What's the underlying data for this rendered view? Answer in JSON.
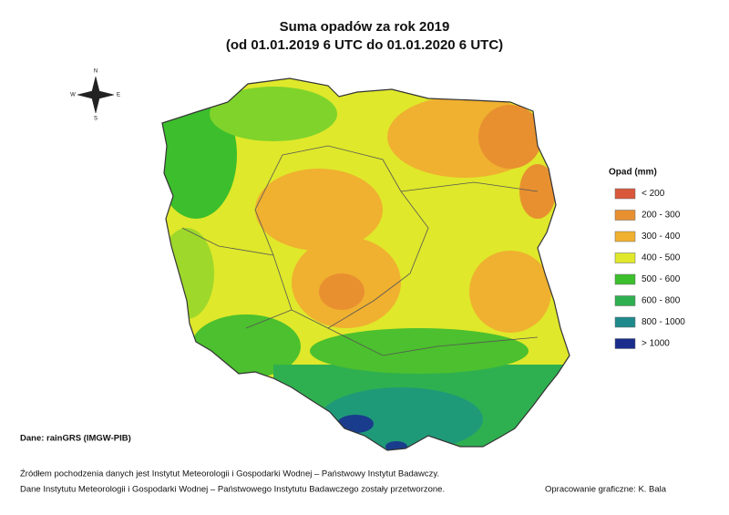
{
  "title": {
    "line1": "Suma opadów za rok 2019",
    "line2": "(od 01.01.2019 6 UTC do 01.01.2020 6 UTC)"
  },
  "compass": {
    "n": "N",
    "e": "E",
    "s": "S",
    "w": "W"
  },
  "legend": {
    "title": "Opad (mm)",
    "items": [
      {
        "label": "< 200",
        "color": "#d9573a"
      },
      {
        "label": "200 - 300",
        "color": "#e89030"
      },
      {
        "label": "300 - 400",
        "color": "#f0b030"
      },
      {
        "label": "400 - 500",
        "color": "#dfe82a"
      },
      {
        "label": "500 - 600",
        "color": "#3cbe2d"
      },
      {
        "label": "600 - 800",
        "color": "#2fb050"
      },
      {
        "label": "800 - 1000",
        "color": "#1f8a8c"
      },
      {
        "label": "> 1000",
        "color": "#1a2c8c"
      }
    ]
  },
  "source": "Dane: rainGRS (IMGW-PIB)",
  "footer": {
    "line1": "Źródłem pochodzenia danych jest Instytut Meteorologii i Gospodarki Wodnej – Państwowy Instytut Badawczy.",
    "line2": "Dane Instytutu Meteorologii i Gospodarki Wodnej – Państwowego Instytutu Badawczego zostały przetworzone."
  },
  "credit": "Opracowanie graficzne: K. Bala"
}
